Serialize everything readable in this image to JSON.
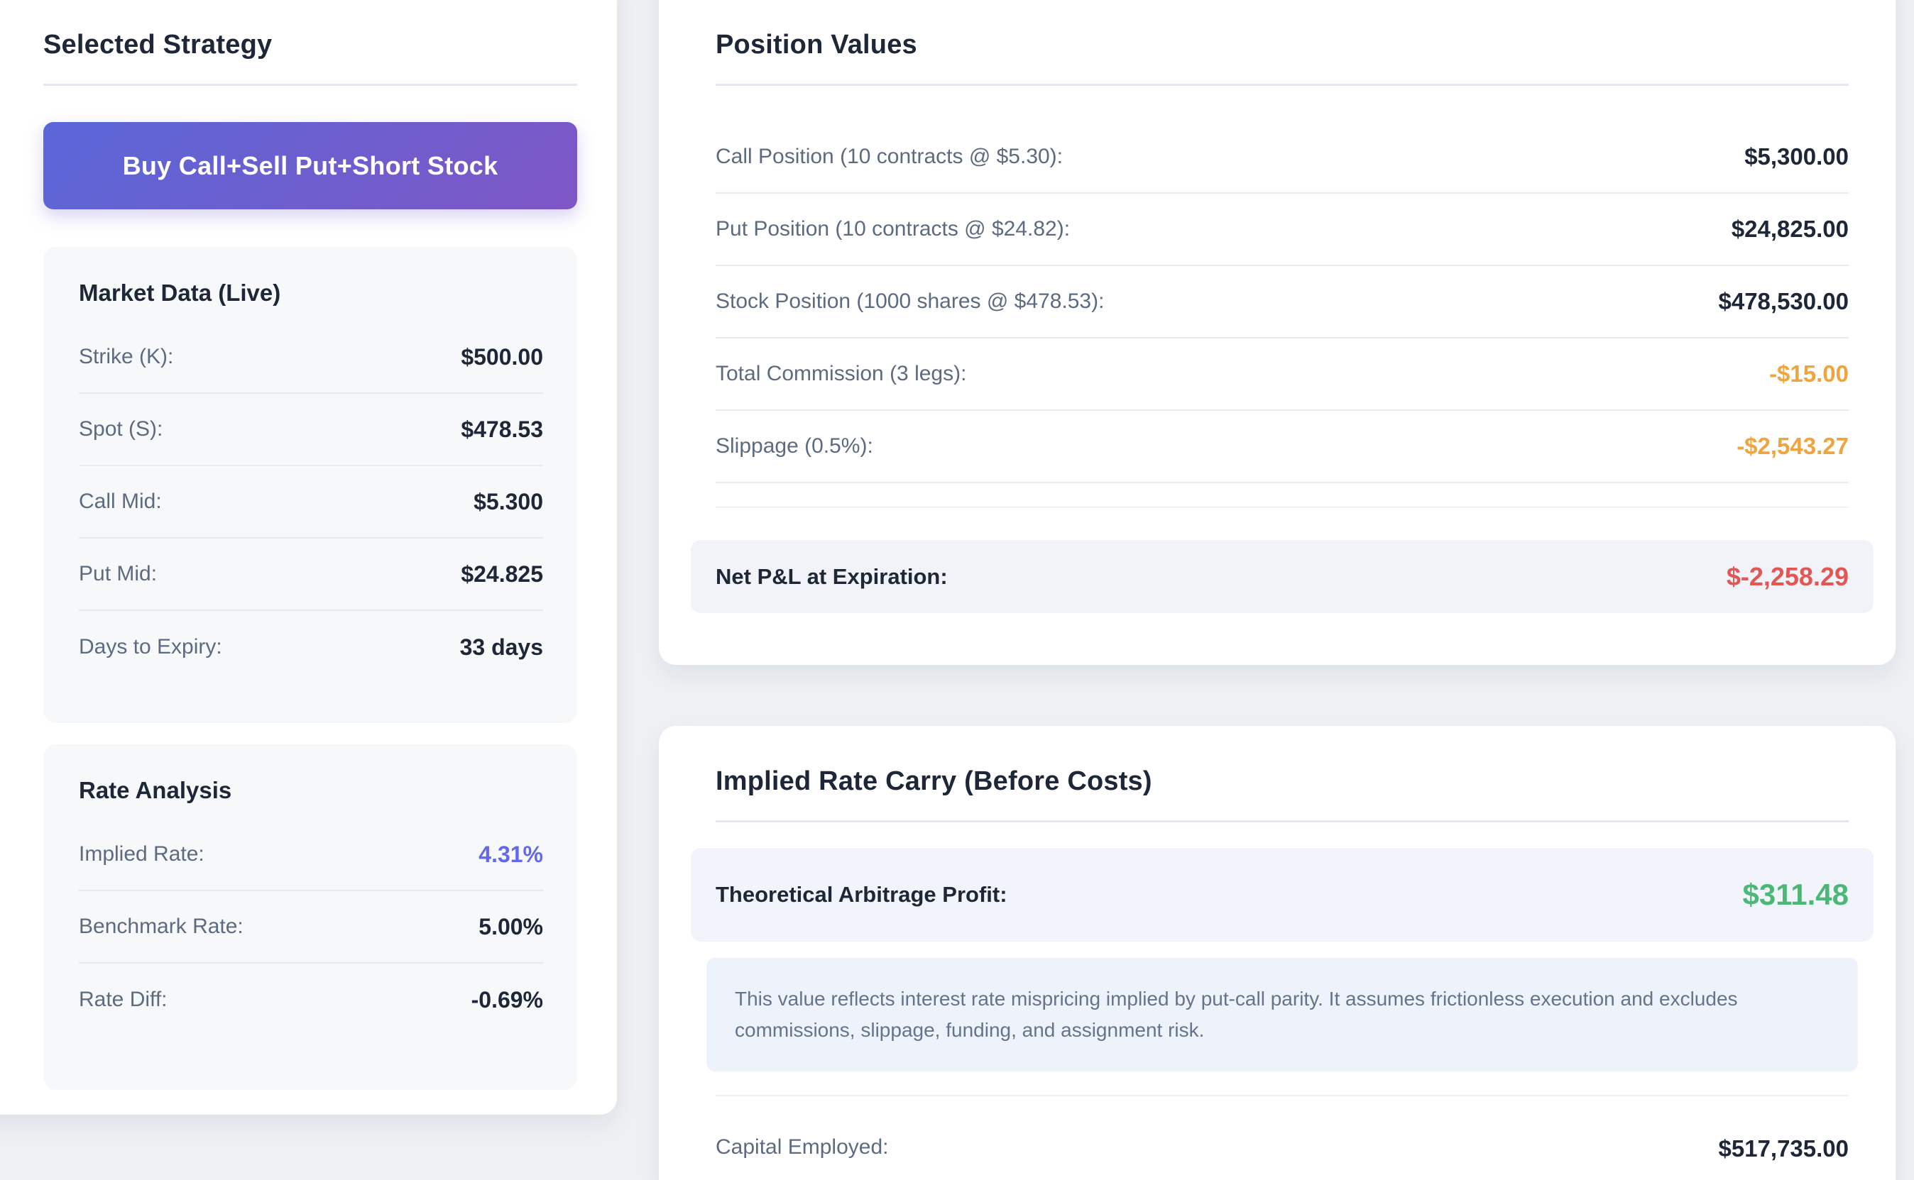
{
  "colors": {
    "page_background": "#eef0f4",
    "card_background": "#ffffff",
    "inner_card_background": "#f7f8fa",
    "accent_gradient_start": "#5a67d8",
    "accent_gradient_end": "#7f56c5",
    "text_dark": "#1d2737",
    "text_label": "#5d6b80",
    "positive_green": "#4cb878",
    "negative_red": "#e25753",
    "warning_amber": "#efa53f",
    "implied_rate_indigo": "#6467eb",
    "highlight_row_background": "#f1f3f9",
    "note_background": "#eef2fb"
  },
  "strategy_panel": {
    "title": "Selected Strategy",
    "button_label": "Buy Call+Sell Put+Short Stock",
    "market_data": {
      "title": "Market Data (Live)",
      "rows": [
        {
          "label": "Strike (K):",
          "value": "$500.00"
        },
        {
          "label": "Spot (S):",
          "value": "$478.53"
        },
        {
          "label": "Call Mid:",
          "value": "$5.300"
        },
        {
          "label": "Put Mid:",
          "value": "$24.825"
        },
        {
          "label": "Days to Expiry:",
          "value": "33 days"
        }
      ]
    },
    "rate_analysis": {
      "title": "Rate Analysis",
      "rows": [
        {
          "label": "Implied Rate:",
          "value": "4.31%"
        },
        {
          "label": "Benchmark Rate:",
          "value": "5.00%"
        },
        {
          "label": "Rate Diff:",
          "value": "-0.69%"
        }
      ]
    }
  },
  "position_values": {
    "title": "Position Values",
    "rows": [
      {
        "label": "Call Position (10 contracts @ $5.30):",
        "value": "$5,300.00"
      },
      {
        "label": "Put Position (10 contracts @ $24.82):",
        "value": "$24,825.00"
      },
      {
        "label": "Stock Position (1000 shares @ $478.53):",
        "value": "$478,530.00"
      },
      {
        "label": "Total Commission (3 legs):",
        "value": "-$15.00"
      },
      {
        "label": "Slippage (0.5%):",
        "value": "-$2,543.27"
      }
    ],
    "net_row": {
      "label": "Net P&L at Expiration:",
      "value": "$-2,258.29"
    }
  },
  "implied_rate_carry": {
    "title": "Implied Rate Carry (Before Costs)",
    "profit_row": {
      "label": "Theoretical Arbitrage Profit:",
      "value": "$311.48"
    },
    "note": "This value reflects interest rate mispricing implied by put-call parity. It assumes frictionless execution and excludes commissions, slippage, funding, and assignment risk.",
    "capital_row": {
      "label": "Capital Employed:",
      "value": "$517,735.00"
    }
  }
}
